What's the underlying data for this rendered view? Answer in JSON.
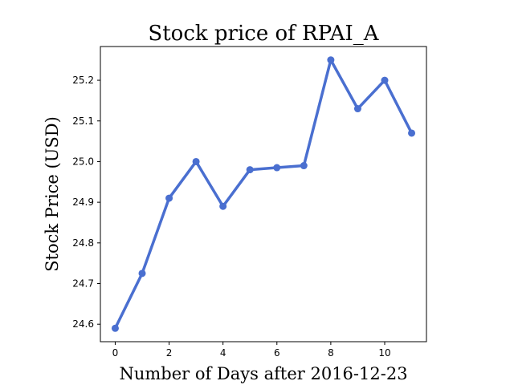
{
  "chart_data": {
    "type": "line",
    "title": "Stock price of RPAI_A",
    "xlabel": "Number of Days after 2016-12-23",
    "ylabel": "Stock Price (USD)",
    "x": [
      0,
      1,
      2,
      3,
      4,
      5,
      6,
      7,
      8,
      9,
      10,
      11
    ],
    "series": [
      {
        "values": [
          24.59,
          24.725,
          24.91,
          25.0,
          24.89,
          24.98,
          24.985,
          24.99,
          25.25,
          25.13,
          25.2,
          25.07
        ],
        "color": "#4a6fd0"
      }
    ],
    "xticks": [
      0,
      2,
      4,
      6,
      8,
      10
    ],
    "xtick_labels": [
      "0",
      "2",
      "4",
      "6",
      "8",
      "10"
    ],
    "yticks": [
      24.6,
      24.7,
      24.8,
      24.9,
      25.0,
      25.1,
      25.2
    ],
    "ytick_labels": [
      "24.6",
      "24.7",
      "24.8",
      "24.9",
      "25.0",
      "25.1",
      "25.2"
    ],
    "xlim": [
      -0.55,
      11.55
    ],
    "ylim": [
      24.557,
      25.283
    ],
    "grid": false,
    "legend": "none"
  }
}
